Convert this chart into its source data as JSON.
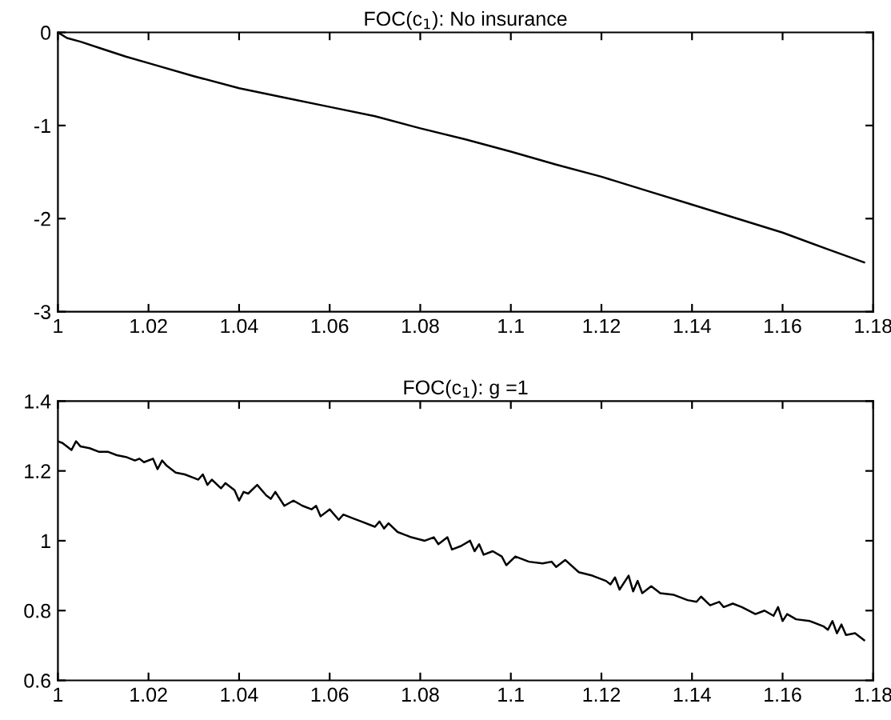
{
  "chart_data": [
    {
      "type": "line",
      "title": "FOC(c$_{1}$): No insurance",
      "x": [
        1,
        1.002,
        1.005,
        1.01,
        1.015,
        1.02,
        1.03,
        1.04,
        1.05,
        1.06,
        1.07,
        1.08,
        1.09,
        1.1,
        1.11,
        1.12,
        1.13,
        1.14,
        1.15,
        1.16,
        1.17,
        1.178
      ],
      "series": [
        {
          "color": "#000000",
          "values": [
            0,
            -0.06,
            -0.1,
            -0.18,
            -0.26,
            -0.33,
            -0.47,
            -0.6,
            -0.7,
            -0.8,
            -0.9,
            -1.03,
            -1.15,
            -1.28,
            -1.42,
            -1.55,
            -1.7,
            -1.85,
            -2.0,
            -2.15,
            -2.33,
            -2.47
          ]
        }
      ],
      "xlim": [
        1,
        1.18
      ],
      "xticks": [
        1,
        1.02,
        1.04,
        1.06,
        1.08,
        1.1,
        1.12,
        1.14,
        1.16,
        1.18
      ],
      "ylim": [
        -3,
        0
      ],
      "yticks": [
        -3,
        -2,
        -1,
        0
      ],
      "grid": false,
      "legend": false
    },
    {
      "type": "line",
      "title": "FOC(c$_{1}$): g =1",
      "x": [
        1,
        1.001,
        1.003,
        1.004,
        1.005,
        1.007,
        1.009,
        1.011,
        1.013,
        1.015,
        1.017,
        1.018,
        1.019,
        1.021,
        1.022,
        1.023,
        1.024,
        1.026,
        1.028,
        1.03,
        1.031,
        1.032,
        1.033,
        1.034,
        1.036,
        1.037,
        1.039,
        1.04,
        1.041,
        1.042,
        1.044,
        1.046,
        1.047,
        1.048,
        1.05,
        1.052,
        1.054,
        1.056,
        1.057,
        1.058,
        1.06,
        1.062,
        1.063,
        1.065,
        1.067,
        1.07,
        1.071,
        1.072,
        1.073,
        1.075,
        1.078,
        1.081,
        1.083,
        1.084,
        1.086,
        1.087,
        1.089,
        1.091,
        1.092,
        1.093,
        1.094,
        1.096,
        1.098,
        1.099,
        1.101,
        1.104,
        1.107,
        1.109,
        1.11,
        1.112,
        1.115,
        1.118,
        1.121,
        1.122,
        1.123,
        1.124,
        1.126,
        1.127,
        1.128,
        1.129,
        1.131,
        1.133,
        1.136,
        1.139,
        1.141,
        1.142,
        1.144,
        1.146,
        1.147,
        1.149,
        1.151,
        1.154,
        1.156,
        1.158,
        1.159,
        1.16,
        1.161,
        1.163,
        1.166,
        1.169,
        1.17,
        1.171,
        1.172,
        1.173,
        1.174,
        1.176,
        1.178
      ],
      "series": [
        {
          "color": "#000000",
          "values": [
            1.285,
            1.28,
            1.26,
            1.285,
            1.27,
            1.265,
            1.255,
            1.255,
            1.245,
            1.24,
            1.23,
            1.235,
            1.225,
            1.235,
            1.205,
            1.23,
            1.215,
            1.195,
            1.19,
            1.18,
            1.175,
            1.19,
            1.16,
            1.175,
            1.15,
            1.165,
            1.145,
            1.115,
            1.14,
            1.135,
            1.16,
            1.13,
            1.12,
            1.14,
            1.1,
            1.115,
            1.1,
            1.09,
            1.1,
            1.07,
            1.09,
            1.06,
            1.075,
            1.065,
            1.055,
            1.04,
            1.055,
            1.035,
            1.05,
            1.025,
            1.01,
            1.0,
            1.01,
            0.99,
            1.01,
            0.975,
            0.985,
            1.0,
            0.97,
            0.99,
            0.96,
            0.97,
            0.955,
            0.93,
            0.955,
            0.94,
            0.935,
            0.94,
            0.925,
            0.945,
            0.91,
            0.9,
            0.885,
            0.875,
            0.895,
            0.86,
            0.9,
            0.855,
            0.885,
            0.85,
            0.87,
            0.85,
            0.845,
            0.83,
            0.825,
            0.84,
            0.815,
            0.825,
            0.81,
            0.82,
            0.81,
            0.79,
            0.8,
            0.785,
            0.81,
            0.77,
            0.79,
            0.775,
            0.77,
            0.755,
            0.745,
            0.77,
            0.735,
            0.76,
            0.73,
            0.735,
            0.715
          ]
        }
      ],
      "xlim": [
        1,
        1.18
      ],
      "xticks": [
        1,
        1.02,
        1.04,
        1.06,
        1.08,
        1.1,
        1.12,
        1.14,
        1.16,
        1.18
      ],
      "ylim": [
        0.6,
        1.4
      ],
      "yticks": [
        0.6,
        0.8,
        1,
        1.2,
        1.4
      ],
      "grid": false,
      "legend": false
    }
  ]
}
